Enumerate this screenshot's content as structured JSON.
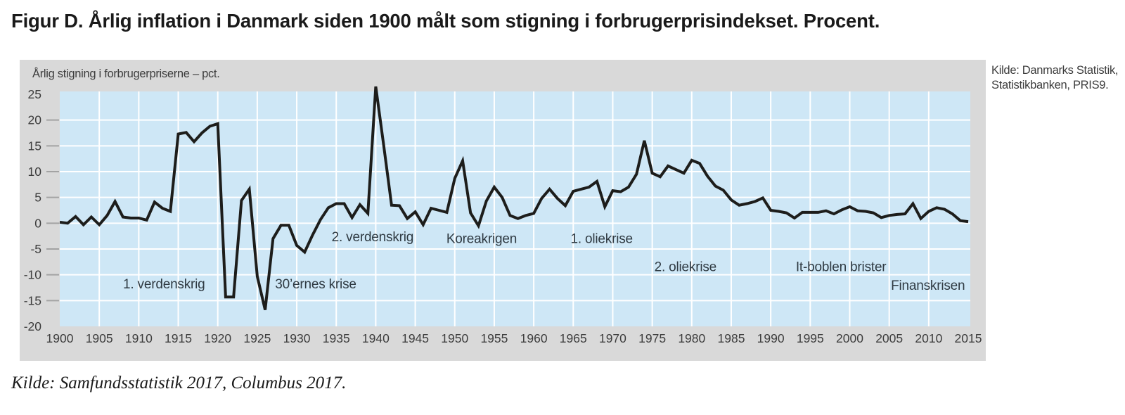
{
  "title": "Figur D. Årlig inflation i Danmark siden 1900 målt som stigning i forbrugerprisindekset. Procent.",
  "sources": {
    "right_line1": "Kilde: Danmarks Statistik,",
    "right_line2": "Statistikbanken, PRIS9.",
    "bottom": "Kilde: Samfundsstatistik 2017, Columbus 2017."
  },
  "chart_data": {
    "type": "line",
    "title": "Årlig inflation i Danmark siden 1900 målt som stigning i forbrugerprisindekset",
    "axis_label": "Årlig stigning i forbrugerpriserne – pct.",
    "xlabel": "",
    "ylabel": "pct.",
    "x_start_year": 1900,
    "x_end_year": 2015,
    "ylim": [
      -20,
      25
    ],
    "grid": true,
    "y_ticks": [
      25,
      20,
      15,
      10,
      5,
      0,
      -5,
      -10,
      -15,
      -20
    ],
    "x_ticks": [
      1900,
      1905,
      1910,
      1915,
      1920,
      1925,
      1930,
      1935,
      1940,
      1945,
      1950,
      1955,
      1960,
      1965,
      1970,
      1975,
      1980,
      1985,
      1990,
      1995,
      2000,
      2005,
      2010,
      2015
    ],
    "values": [
      0.2,
      0.0,
      1.3,
      -0.3,
      1.2,
      -0.3,
      1.5,
      4.2,
      1.2,
      1.0,
      1.0,
      0.6,
      4.1,
      2.9,
      2.3,
      17.3,
      17.6,
      15.8,
      17.5,
      18.8,
      19.3,
      -14.3,
      -14.3,
      4.4,
      6.6,
      -10.3,
      -16.8,
      -3.0,
      -0.4,
      -0.4,
      -4.3,
      -5.6,
      -2.3,
      0.7,
      3.0,
      3.8,
      3.8,
      1.1,
      3.6,
      1.9,
      26.5,
      15.2,
      3.5,
      3.4,
      0.9,
      2.2,
      -0.3,
      2.9,
      2.5,
      2.1,
      8.7,
      12.1,
      2.0,
      -0.5,
      4.3,
      7.0,
      5.0,
      1.5,
      0.9,
      1.5,
      1.9,
      4.8,
      6.6,
      4.8,
      3.4,
      6.2,
      6.6,
      7.0,
      8.1,
      3.2,
      6.3,
      6.1,
      7.0,
      9.5,
      16.0,
      9.7,
      9.0,
      11.1,
      10.4,
      9.7,
      12.2,
      11.6,
      9.1,
      7.2,
      6.4,
      4.5,
      3.5,
      3.8,
      4.2,
      4.9,
      2.5,
      2.3,
      2.0,
      1.0,
      2.1,
      2.1,
      2.1,
      2.4,
      1.8,
      2.6,
      3.2,
      2.4,
      2.3,
      2.0,
      1.1,
      1.5,
      1.7,
      1.8,
      3.8,
      0.9,
      2.3,
      3.0,
      2.7,
      1.8,
      0.5,
      0.3
    ],
    "annotations": [
      {
        "label": "1. verdenskrig",
        "year": 1913.2,
        "value": -11.8
      },
      {
        "label": "30’ernes krise",
        "year": 1932.4,
        "value": -11.8
      },
      {
        "label": "2. verdenskrig",
        "year": 1939.6,
        "value": -2.7
      },
      {
        "label": "Koreakrigen",
        "year": 1953.4,
        "value": -3.0
      },
      {
        "label": "1. oliekrise",
        "year": 1968.6,
        "value": -3.0
      },
      {
        "label": "2. oliekrise",
        "year": 1979.2,
        "value": -8.5
      },
      {
        "label": "It-boblen brister",
        "year": 1998.9,
        "value": -8.5
      },
      {
        "label": "Finanskrisen",
        "year": 2009.9,
        "value": -12.1
      }
    ],
    "legend": [],
    "colors": {
      "panel_bg": "#d9d9d9",
      "plot_bg": "#cee7f6",
      "gridline": "#ffffff",
      "line": "#1d1d1b",
      "tick_dash": "#a3a3a3",
      "axis_text": "#3d3d3d",
      "annotation_text": "#2f3a42"
    }
  }
}
